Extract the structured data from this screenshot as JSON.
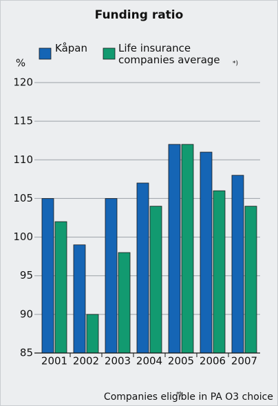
{
  "chart_data": {
    "type": "bar",
    "title": "Funding ratio",
    "y_label": "%",
    "categories": [
      "2001",
      "2002",
      "2003",
      "2004",
      "2005",
      "2006",
      "2007"
    ],
    "series": [
      {
        "name": "Kåpan",
        "color": "#1565b5",
        "values": [
          105,
          99,
          105,
          107,
          112,
          111,
          108
        ]
      },
      {
        "name": "Life insurance companies average",
        "color": "#129a70",
        "values": [
          102,
          90,
          98,
          104,
          112,
          106,
          104
        ]
      }
    ],
    "legend_note": "*)",
    "ylim": [
      85,
      120
    ],
    "yticks": [
      85,
      90,
      95,
      100,
      105,
      110,
      115,
      120
    ],
    "grid": true,
    "footnote_marker": "*)",
    "footnote": "Companies eligible in PA O3 choice"
  }
}
